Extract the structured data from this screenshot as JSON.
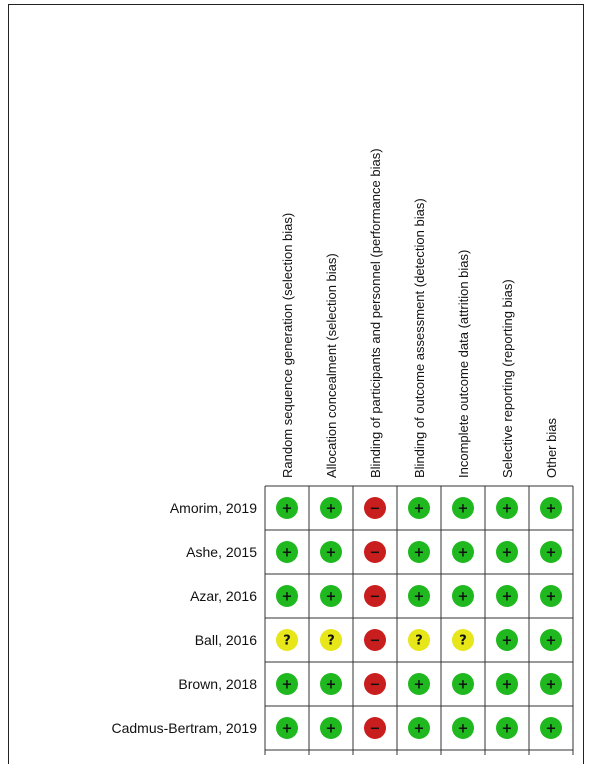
{
  "domains": [
    "Random sequence generation (selection bias)",
    "Allocation concealment (selection bias)",
    "Blinding of participants and personnel (performance bias)",
    "Blinding of outcome assessment (detection bias)",
    "Incomplete outcome data (attrition bias)",
    "Selective reporting (reporting bias)",
    "Other bias"
  ],
  "studies": [
    {
      "name": "Amorim, 2019",
      "ratings": [
        "low",
        "low",
        "high",
        "low",
        "low",
        "low",
        "low"
      ]
    },
    {
      "name": "Ashe, 2015",
      "ratings": [
        "low",
        "low",
        "high",
        "low",
        "low",
        "low",
        "low"
      ]
    },
    {
      "name": "Azar, 2016",
      "ratings": [
        "low",
        "low",
        "high",
        "low",
        "low",
        "low",
        "low"
      ]
    },
    {
      "name": "Ball, 2016",
      "ratings": [
        "unclear",
        "unclear",
        "high",
        "unclear",
        "unclear",
        "low",
        "low"
      ]
    },
    {
      "name": "Brown, 2018",
      "ratings": [
        "low",
        "low",
        "high",
        "low",
        "low",
        "low",
        "low"
      ]
    },
    {
      "name": "Cadmus-Bertram, 2019",
      "ratings": [
        "low",
        "low",
        "high",
        "low",
        "low",
        "low",
        "low"
      ]
    }
  ],
  "legend": {
    "low": {
      "symbol": "+",
      "fill": "#1fb81f",
      "text": "#111111"
    },
    "high": {
      "symbol": "−",
      "fill": "#c81e1e",
      "text": "#111111"
    },
    "unclear": {
      "symbol": "?",
      "fill": "#e6e619",
      "text": "#111111"
    }
  }
}
